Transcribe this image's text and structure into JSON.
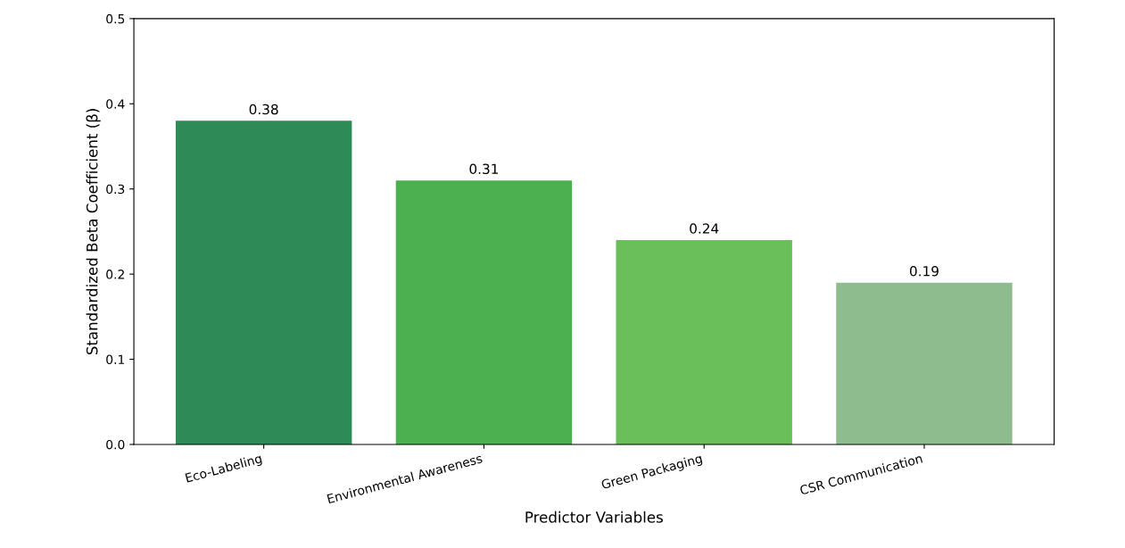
{
  "chart_data": {
    "type": "bar",
    "xlabel": "Predictor Variables",
    "ylabel": "Standardized Beta Coefficient (β)",
    "categories": [
      "Eco-Labeling",
      "Environmental Awareness",
      "Green Packaging",
      "CSR Communication"
    ],
    "values": [
      0.38,
      0.31,
      0.24,
      0.19
    ],
    "colors": [
      "#2e8b57",
      "#4caf50",
      "#6abf5b",
      "#8fbc8f"
    ],
    "ylim": [
      0,
      0.5
    ],
    "yticks": [
      {
        "value": 0,
        "label": "0.0"
      },
      {
        "value": 0.1,
        "label": "0.1"
      },
      {
        "value": 0.2,
        "label": "0.2"
      },
      {
        "value": 0.3,
        "label": "0.3"
      },
      {
        "value": 0.4,
        "label": "0.4"
      },
      {
        "value": 0.5,
        "label": "0.5"
      }
    ],
    "data_labels": true,
    "grid": false
  }
}
